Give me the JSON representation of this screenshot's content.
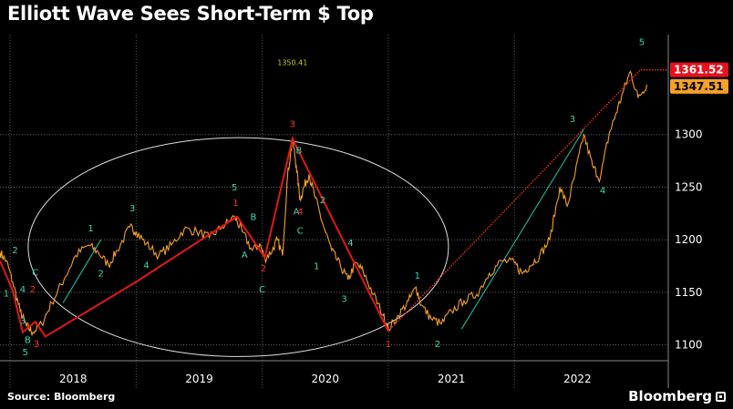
{
  "header": {
    "title": "Elliott Wave Sees Short-Term $ Top"
  },
  "footer": {
    "source": "Source: Bloomberg",
    "brand": "Bloomberg"
  },
  "colors": {
    "price": "#f5a028",
    "wave": "#e01818",
    "projection": "#ff2a2a",
    "trend": "#1ec8a8",
    "label_green": "#3fd6b0",
    "label_red": "#ff3030",
    "grid": "#666666",
    "circle": "#dddddd"
  },
  "chart_data": {
    "type": "line",
    "x_range": [
      "2017-06-01",
      "2022-09-15"
    ],
    "ylim": [
      1085,
      1395
    ],
    "yticks": [
      1100,
      1150,
      1200,
      1250,
      1300
    ],
    "xticks": [
      {
        "label": "2018",
        "t": 2018.0
      },
      {
        "label": "2019",
        "t": 2019.0
      },
      {
        "label": "2020",
        "t": 2020.0
      },
      {
        "label": "2021",
        "t": 2021.0
      },
      {
        "label": "2022",
        "t": 2022.0
      }
    ],
    "year_dividers": [
      2017.5,
      2018.5,
      2019.5,
      2020.5,
      2021.5
    ],
    "series": [
      {
        "kind": "price",
        "points": [
          [
            2017.42,
            1188
          ],
          [
            2017.47,
            1180
          ],
          [
            2017.52,
            1160
          ],
          [
            2017.58,
            1132
          ],
          [
            2017.63,
            1118
          ],
          [
            2017.68,
            1112
          ],
          [
            2017.75,
            1120
          ],
          [
            2017.83,
            1140
          ],
          [
            2017.93,
            1163
          ],
          [
            2018.02,
            1185
          ],
          [
            2018.12,
            1195
          ],
          [
            2018.2,
            1188
          ],
          [
            2018.28,
            1176
          ],
          [
            2018.35,
            1190
          ],
          [
            2018.45,
            1212
          ],
          [
            2018.5,
            1208
          ],
          [
            2018.58,
            1196
          ],
          [
            2018.68,
            1185
          ],
          [
            2018.78,
            1195
          ],
          [
            2018.88,
            1210
          ],
          [
            2018.98,
            1208
          ],
          [
            2019.08,
            1202
          ],
          [
            2019.18,
            1212
          ],
          [
            2019.28,
            1222
          ],
          [
            2019.34,
            1208
          ],
          [
            2019.42,
            1190
          ],
          [
            2019.48,
            1196
          ],
          [
            2019.52,
            1182
          ],
          [
            2019.58,
            1190
          ],
          [
            2019.62,
            1200
          ],
          [
            2019.66,
            1185
          ],
          [
            2019.7,
            1260
          ],
          [
            2019.74,
            1296
          ],
          [
            2019.77,
            1270
          ],
          [
            2019.8,
            1238
          ],
          [
            2019.83,
            1250
          ],
          [
            2019.87,
            1262
          ],
          [
            2019.92,
            1240
          ],
          [
            2019.98,
            1215
          ],
          [
            2020.05,
            1190
          ],
          [
            2020.12,
            1175
          ],
          [
            2020.18,
            1162
          ],
          [
            2020.24,
            1178
          ],
          [
            2020.3,
            1170
          ],
          [
            2020.38,
            1148
          ],
          [
            2020.46,
            1128
          ],
          [
            2020.5,
            1115
          ],
          [
            2020.58,
            1128
          ],
          [
            2020.66,
            1142
          ],
          [
            2020.72,
            1155
          ],
          [
            2020.76,
            1138
          ],
          [
            2020.84,
            1125
          ],
          [
            2020.92,
            1120
          ],
          [
            2021.0,
            1132
          ],
          [
            2021.1,
            1142
          ],
          [
            2021.2,
            1148
          ],
          [
            2021.3,
            1168
          ],
          [
            2021.4,
            1180
          ],
          [
            2021.5,
            1178
          ],
          [
            2021.56,
            1168
          ],
          [
            2021.62,
            1175
          ],
          [
            2021.7,
            1185
          ],
          [
            2021.78,
            1200
          ],
          [
            2021.86,
            1250
          ],
          [
            2021.92,
            1232
          ],
          [
            2021.98,
            1262
          ],
          [
            2022.05,
            1300
          ],
          [
            2022.12,
            1270
          ],
          [
            2022.18,
            1258
          ],
          [
            2022.25,
            1300
          ],
          [
            2022.3,
            1318
          ],
          [
            2022.36,
            1340
          ],
          [
            2022.42,
            1360
          ],
          [
            2022.48,
            1335
          ],
          [
            2022.55,
            1347.51
          ]
        ]
      },
      {
        "kind": "wave",
        "points": [
          [
            2017.42,
            1180
          ],
          [
            2017.52,
            1152
          ],
          [
            2017.6,
            1112
          ],
          [
            2017.7,
            1122
          ],
          [
            2017.78,
            1108
          ],
          [
            2018.5,
            1160
          ],
          [
            2019.3,
            1222
          ],
          [
            2019.52,
            1183
          ],
          [
            2019.74,
            1296
          ],
          [
            2020.5,
            1113
          ]
        ]
      },
      {
        "kind": "projection",
        "points": [
          [
            2020.5,
            1113
          ],
          [
            2022.5,
            1361.52
          ],
          [
            2022.72,
            1361.52
          ]
        ]
      },
      {
        "kind": "trend",
        "points": [
          [
            2017.92,
            1140
          ],
          [
            2018.22,
            1200
          ]
        ]
      },
      {
        "kind": "trend",
        "points": [
          [
            2021.08,
            1115
          ],
          [
            2022.05,
            1305
          ]
        ]
      }
    ],
    "last_value": 1347.51,
    "target_value": 1361.52,
    "annotation_value": "1350.41",
    "wave_labels": [
      {
        "text": "2",
        "t": 2017.54,
        "v": 1187,
        "c": "g"
      },
      {
        "text": "1",
        "t": 2017.47,
        "v": 1146,
        "c": "g"
      },
      {
        "text": "4",
        "t": 2017.6,
        "v": 1150,
        "c": "g"
      },
      {
        "text": "2",
        "t": 2017.68,
        "v": 1150,
        "c": "r"
      },
      {
        "text": "C",
        "t": 2017.7,
        "v": 1166,
        "c": "g"
      },
      {
        "text": "3",
        "t": 2017.6,
        "v": 1120,
        "c": "g"
      },
      {
        "text": "B",
        "t": 2017.64,
        "v": 1102,
        "c": "g"
      },
      {
        "text": "3",
        "t": 2017.71,
        "v": 1098,
        "c": "r"
      },
      {
        "text": "5",
        "t": 2017.62,
        "v": 1090,
        "c": "g"
      },
      {
        "text": "1",
        "t": 2018.14,
        "v": 1208,
        "c": "g"
      },
      {
        "text": "2",
        "t": 2018.22,
        "v": 1165,
        "c": "g"
      },
      {
        "text": "3",
        "t": 2018.47,
        "v": 1227,
        "c": "g"
      },
      {
        "text": "4",
        "t": 2018.58,
        "v": 1173,
        "c": "g"
      },
      {
        "text": "5",
        "t": 2019.28,
        "v": 1247,
        "c": "g"
      },
      {
        "text": "1",
        "t": 2019.29,
        "v": 1232,
        "c": "r"
      },
      {
        "text": "B",
        "t": 2019.43,
        "v": 1219,
        "c": "g"
      },
      {
        "text": "A",
        "t": 2019.36,
        "v": 1183,
        "c": "g"
      },
      {
        "text": "2",
        "t": 2019.51,
        "v": 1170,
        "c": "r"
      },
      {
        "text": "C",
        "t": 2019.5,
        "v": 1150,
        "c": "g"
      },
      {
        "text": "3",
        "t": 2019.74,
        "v": 1307,
        "c": "r"
      },
      {
        "text": "B",
        "t": 2019.79,
        "v": 1282,
        "c": "g"
      },
      {
        "text": "A",
        "t": 2019.77,
        "v": 1224,
        "c": "g"
      },
      {
        "text": "4",
        "t": 2019.8,
        "v": 1224,
        "c": "r"
      },
      {
        "text": "C",
        "t": 2019.8,
        "v": 1206,
        "c": "g"
      },
      {
        "text": "2",
        "t": 2019.98,
        "v": 1235,
        "c": "g"
      },
      {
        "text": "1",
        "t": 2019.93,
        "v": 1172,
        "c": "g"
      },
      {
        "text": "4",
        "t": 2020.2,
        "v": 1194,
        "c": "g"
      },
      {
        "text": "3",
        "t": 2020.15,
        "v": 1141,
        "c": "g"
      },
      {
        "text": "1",
        "t": 2020.5,
        "v": 1098,
        "c": "r"
      },
      {
        "text": "1",
        "t": 2020.73,
        "v": 1163,
        "c": "g"
      },
      {
        "text": "2",
        "t": 2020.89,
        "v": 1098,
        "c": "g"
      },
      {
        "text": "3",
        "t": 2021.96,
        "v": 1312,
        "c": "g"
      },
      {
        "text": "4",
        "t": 2022.2,
        "v": 1244,
        "c": "g"
      },
      {
        "text": "5",
        "t": 2022.51,
        "v": 1385,
        "c": "g"
      }
    ],
    "circle": {
      "center_t": 2019.31,
      "center_v": 1193,
      "radius_months": 20,
      "radius_v": 104
    }
  }
}
